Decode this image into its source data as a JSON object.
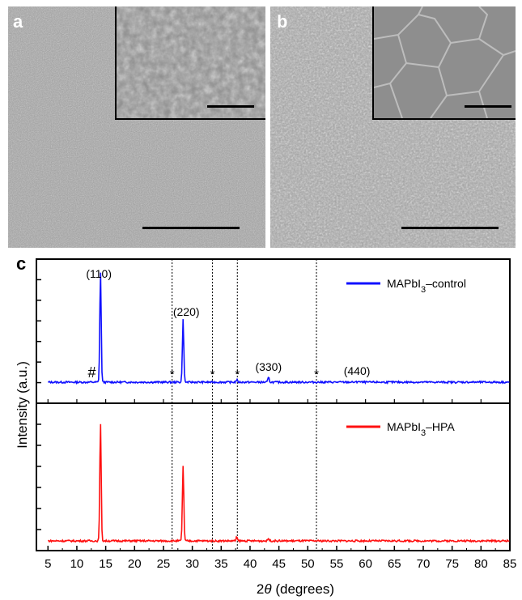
{
  "panels": {
    "a_label": "a",
    "b_label": "b",
    "c_label": "c"
  },
  "colors": {
    "control": "#1010ff",
    "hpa": "#ff1010",
    "axis": "#000000"
  },
  "chart_data": {
    "type": "line",
    "xlabel": "2θ (degrees)",
    "ylabel": "Intensity (a.u.)",
    "xlim": [
      3,
      85
    ],
    "xticks": [
      5,
      10,
      15,
      20,
      25,
      30,
      35,
      40,
      45,
      50,
      55,
      60,
      65,
      70,
      75,
      80,
      85
    ],
    "reference_lines": [
      26.5,
      33.5,
      37.8,
      51.5
    ],
    "series": [
      {
        "name": "MAPbI3–control",
        "legend_main": "MAPbI",
        "legend_sub": "3",
        "legend_tail": "–control",
        "peaks": [
          {
            "x": 14.1,
            "y": 0.98
          },
          {
            "x": 28.4,
            "y": 0.55
          },
          {
            "x": 43.2,
            "y": 0.04
          },
          {
            "x": 37.7,
            "y": 0.02
          },
          {
            "x": 58.8,
            "y": 0.01
          }
        ],
        "annotations": [
          {
            "text": "(110)",
            "x": 14.1
          },
          {
            "text": "(220)",
            "x": 28.4
          },
          {
            "text": "(330)",
            "x": 43.2
          },
          {
            "text": "(440)",
            "x": 58.8
          },
          {
            "text": "#",
            "x": 12.6
          },
          {
            "text": "*",
            "x": 26.5
          },
          {
            "text": "*",
            "x": 33.5
          },
          {
            "text": "*",
            "x": 37.8
          },
          {
            "text": "*",
            "x": 51.5
          }
        ]
      },
      {
        "name": "MAPbI3–HPA",
        "legend_main": "MAPbI",
        "legend_sub": "3",
        "legend_tail": "–HPA",
        "peaks": [
          {
            "x": 14.1,
            "y": 0.97
          },
          {
            "x": 28.4,
            "y": 0.62
          },
          {
            "x": 37.7,
            "y": 0.03
          },
          {
            "x": 43.2,
            "y": 0.02
          }
        ],
        "annotations": []
      }
    ]
  }
}
